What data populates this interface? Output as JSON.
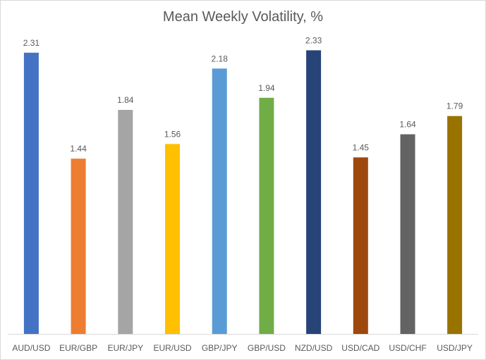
{
  "chart_data": {
    "type": "bar",
    "title": "Mean Weekly Volatility, %",
    "xlabel": "",
    "ylabel": "",
    "ylim": [
      0,
      2.5
    ],
    "grid": false,
    "legend": "none",
    "categories": [
      "AUD/USD",
      "EUR/GBP",
      "EUR/JPY",
      "EUR/USD",
      "GBP/JPY",
      "GBP/USD",
      "NZD/USD",
      "USD/CAD",
      "USD/CHF",
      "USD/JPY"
    ],
    "values": [
      2.31,
      1.44,
      1.84,
      1.56,
      2.18,
      1.94,
      2.33,
      1.45,
      1.64,
      1.79
    ],
    "data_labels": [
      "2.31",
      "1.44",
      "1.84",
      "1.56",
      "2.18",
      "1.94",
      "2.33",
      "1.45",
      "1.64",
      "1.79"
    ],
    "colors": [
      "#4472C4",
      "#ED7D31",
      "#A5A5A5",
      "#FFC000",
      "#5B9BD5",
      "#70AD47",
      "#264478",
      "#9E480E",
      "#636363",
      "#997300"
    ]
  }
}
